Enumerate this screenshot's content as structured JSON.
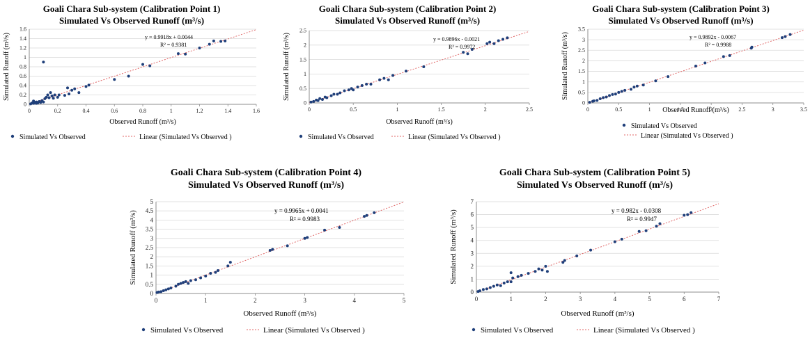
{
  "colors": {
    "marker": "#1f3f7a",
    "trend": "#e06666",
    "grid": "#d9d9d9",
    "axis": "#8c8c8c"
  },
  "chart_data": [
    {
      "type": "scatter",
      "title": "Goali Chara Sub-system (Calibration Point 1)",
      "subtitle": "Simulated Vs Observed Runoff (m³/s)",
      "xlabel": "Observed Runoff (m³/s)",
      "ylabel": "Simulated Runoff (m³/s)",
      "xlim": [
        0,
        1.6
      ],
      "ylim": [
        0,
        1.6
      ],
      "xticks": [
        "0",
        "0.2",
        "0.4",
        "0.6",
        "0.8",
        "1",
        "1.2",
        "1.4",
        "1.6"
      ],
      "yticks": [
        "0",
        "0.2",
        "0.4",
        "0.6",
        "0.8",
        "1",
        "1.2",
        "1.4",
        "1.6"
      ],
      "grid": true,
      "legend": "bottom",
      "equation": "y = 0.9918x + 0.0044",
      "r2": "R² = 0.9381",
      "series": [
        {
          "name": "Simulated Vs Observed",
          "x": [
            0.01,
            0.02,
            0.03,
            0.04,
            0.05,
            0.06,
            0.07,
            0.08,
            0.09,
            0.1,
            0.03,
            0.05,
            0.11,
            0.12,
            0.13,
            0.14,
            0.15,
            0.16,
            0.17,
            0.18,
            0.2,
            0.21,
            0.25,
            0.27,
            0.28,
            0.3,
            0.32,
            0.35,
            0.4,
            0.42,
            0.6,
            0.7,
            0.8,
            0.85,
            1.05,
            1.1,
            1.2,
            1.27,
            1.3,
            1.35,
            1.38,
            0.1
          ],
          "y": [
            0.01,
            0.03,
            0.02,
            0.04,
            0.05,
            0.03,
            0.06,
            0.04,
            0.08,
            0.05,
            0.07,
            0.02,
            0.12,
            0.15,
            0.2,
            0.14,
            0.25,
            0.18,
            0.13,
            0.2,
            0.15,
            0.2,
            0.19,
            0.35,
            0.22,
            0.3,
            0.33,
            0.25,
            0.38,
            0.41,
            0.53,
            0.6,
            0.85,
            0.82,
            1.08,
            1.07,
            1.2,
            1.28,
            1.35,
            1.34,
            1.35,
            0.9
          ]
        },
        {
          "name": "Linear (Simulated Vs Observed )",
          "slope": 0.9918,
          "intercept": 0.0044
        }
      ]
    },
    {
      "type": "scatter",
      "title": "Goali Chara Sub-system (Calibration Point 2)",
      "subtitle": "Simulated Vs Observed Runoff (m³/s)",
      "xlabel": "Observed Runoff (m³/s)",
      "ylabel": "Simulated Runoff (m³/s)",
      "xlim": [
        0,
        2.5
      ],
      "ylim": [
        0,
        2.5
      ],
      "xticks": [
        "0",
        "0.5",
        "1",
        "1.5",
        "2",
        "2.5"
      ],
      "yticks": [
        "0",
        "0.5",
        "1",
        "1.5",
        "2",
        "2.5"
      ],
      "grid": true,
      "legend": "bottom",
      "equation": "y = 0.9896x - 0.0021",
      "r2": "R² = 0.9972",
      "series": [
        {
          "name": "Simulated Vs Observed",
          "x": [
            0.02,
            0.05,
            0.08,
            0.1,
            0.12,
            0.15,
            0.18,
            0.2,
            0.25,
            0.28,
            0.32,
            0.35,
            0.4,
            0.45,
            0.48,
            0.5,
            0.55,
            0.6,
            0.65,
            0.7,
            0.8,
            0.85,
            0.9,
            0.95,
            1.1,
            1.3,
            1.75,
            1.8,
            1.85,
            2.02,
            2.05,
            2.1,
            2.15,
            2.2,
            2.25
          ],
          "y": [
            0.03,
            0.05,
            0.1,
            0.08,
            0.15,
            0.12,
            0.2,
            0.18,
            0.25,
            0.3,
            0.3,
            0.35,
            0.42,
            0.45,
            0.5,
            0.45,
            0.55,
            0.6,
            0.65,
            0.65,
            0.8,
            0.85,
            0.8,
            0.95,
            1.1,
            1.25,
            1.75,
            1.7,
            1.85,
            2.05,
            2.1,
            2.05,
            2.15,
            2.2,
            2.25
          ]
        },
        {
          "name": "Linear (Simulated Vs Observed )",
          "slope": 0.9896,
          "intercept": -0.0021
        }
      ]
    },
    {
      "type": "scatter",
      "title": "Goali Chara Sub-system (Calibration Point 3)",
      "subtitle": "Simulated Vs Observed Runoff (m³/s)",
      "xlabel": "Observed Runoff (m³/s)",
      "ylabel": "Simulated Runoff (m³/s)",
      "xlim": [
        0,
        3.5
      ],
      "ylim": [
        0,
        3.5
      ],
      "xticks": [
        "0",
        "0.5",
        "1",
        "1.5",
        "2",
        "2.5",
        "3",
        "3.5"
      ],
      "yticks": [
        "0",
        "0.5",
        "1",
        "1.5",
        "2",
        "2.5",
        "3",
        "3.5"
      ],
      "grid": true,
      "legend": "bottom",
      "equation": "y = 0.9892x - 0.0067",
      "r2": "R² = 0.9988",
      "series": [
        {
          "name": "Simulated Vs Observed",
          "x": [
            0.03,
            0.08,
            0.1,
            0.15,
            0.2,
            0.25,
            0.3,
            0.35,
            0.4,
            0.45,
            0.5,
            0.55,
            0.6,
            0.7,
            0.75,
            0.8,
            0.9,
            1.1,
            1.3,
            1.75,
            1.9,
            2.2,
            2.3,
            2.65,
            2.66,
            3.15,
            3.2,
            3.28
          ],
          "y": [
            0.03,
            0.08,
            0.1,
            0.12,
            0.2,
            0.25,
            0.28,
            0.35,
            0.4,
            0.42,
            0.5,
            0.55,
            0.6,
            0.65,
            0.75,
            0.8,
            0.85,
            1.05,
            1.25,
            1.75,
            1.9,
            2.2,
            2.25,
            2.6,
            2.65,
            3.1,
            3.15,
            3.25
          ]
        },
        {
          "name": "Linear (Simulated Vs Observed )",
          "slope": 0.9892,
          "intercept": -0.0067
        }
      ]
    },
    {
      "type": "scatter",
      "title": "Goali Chara Sub-system (Calibration Point 4)",
      "subtitle": "Simulated Vs Observed Runoff (m³/s)",
      "xlabel": "Observed Runoff (m³/s)",
      "ylabel": "Simulated Runoff (m³/s)",
      "xlim": [
        0,
        5
      ],
      "ylim": [
        0,
        5
      ],
      "xticks": [
        "0",
        "1",
        "2",
        "3",
        "4",
        "5"
      ],
      "yticks": [
        "0",
        "0.5",
        "1",
        "1.5",
        "2",
        "2.5",
        "3",
        "3.5",
        "4",
        "4.5",
        "5"
      ],
      "grid": true,
      "legend": "bottom",
      "equation": "y = 0.9965x + 0.0041",
      "r2": "R² = 0.9983",
      "series": [
        {
          "name": "Simulated Vs Observed",
          "x": [
            0.02,
            0.05,
            0.1,
            0.15,
            0.2,
            0.25,
            0.3,
            0.4,
            0.45,
            0.5,
            0.55,
            0.6,
            0.65,
            0.7,
            0.8,
            0.9,
            1.0,
            1.1,
            1.2,
            1.25,
            1.45,
            1.5,
            2.3,
            2.35,
            2.65,
            3.0,
            3.05,
            3.4,
            3.7,
            4.2,
            4.25,
            4.4
          ],
          "y": [
            0.05,
            0.08,
            0.1,
            0.15,
            0.2,
            0.25,
            0.3,
            0.4,
            0.5,
            0.55,
            0.6,
            0.65,
            0.55,
            0.7,
            0.75,
            0.85,
            0.95,
            1.1,
            1.15,
            1.25,
            1.5,
            1.7,
            2.35,
            2.4,
            2.6,
            3.0,
            3.05,
            3.45,
            3.6,
            4.2,
            4.25,
            4.4
          ]
        },
        {
          "name": "Linear (Simulated Vs Observed )",
          "slope": 0.9965,
          "intercept": 0.0041
        }
      ]
    },
    {
      "type": "scatter",
      "title": "Goali Chara Sub-system (Calibration Point 5)",
      "subtitle": "Simulated Vs Observed Runoff (m³/s)",
      "xlabel": "Observed Runoff (m³/s)",
      "ylabel": "Simulated Runoff (m³/s)",
      "xlim": [
        0,
        7
      ],
      "ylim": [
        0,
        7
      ],
      "xticks": [
        "0",
        "1",
        "2",
        "3",
        "4",
        "5",
        "6",
        "7"
      ],
      "yticks": [
        "0",
        "1",
        "2",
        "3",
        "4",
        "5",
        "6",
        "7"
      ],
      "grid": true,
      "legend": "bottom",
      "equation": "y = 0.982x - 0.0308",
      "r2": "R² = 0.9947",
      "series": [
        {
          "name": "Simulated Vs Observed",
          "x": [
            0.05,
            0.1,
            0.2,
            0.3,
            0.4,
            0.5,
            0.6,
            0.7,
            0.8,
            0.9,
            1.0,
            1.0,
            1.05,
            1.2,
            1.3,
            1.5,
            1.7,
            1.8,
            1.9,
            2.0,
            2.05,
            2.5,
            2.55,
            2.9,
            3.3,
            4.0,
            4.2,
            4.7,
            4.9,
            5.2,
            5.3,
            6.0,
            6.1,
            6.2
          ],
          "y": [
            0.05,
            0.1,
            0.2,
            0.25,
            0.35,
            0.45,
            0.55,
            0.5,
            0.7,
            0.8,
            1.5,
            0.8,
            1.1,
            1.2,
            1.3,
            1.45,
            1.6,
            1.8,
            1.7,
            2.0,
            1.6,
            2.3,
            2.45,
            2.8,
            3.25,
            3.9,
            4.1,
            4.7,
            4.75,
            5.1,
            5.3,
            5.95,
            6.0,
            6.15
          ]
        },
        {
          "name": "Linear (Simulated Vs Observed )",
          "slope": 0.982,
          "intercept": -0.0308
        }
      ]
    }
  ]
}
